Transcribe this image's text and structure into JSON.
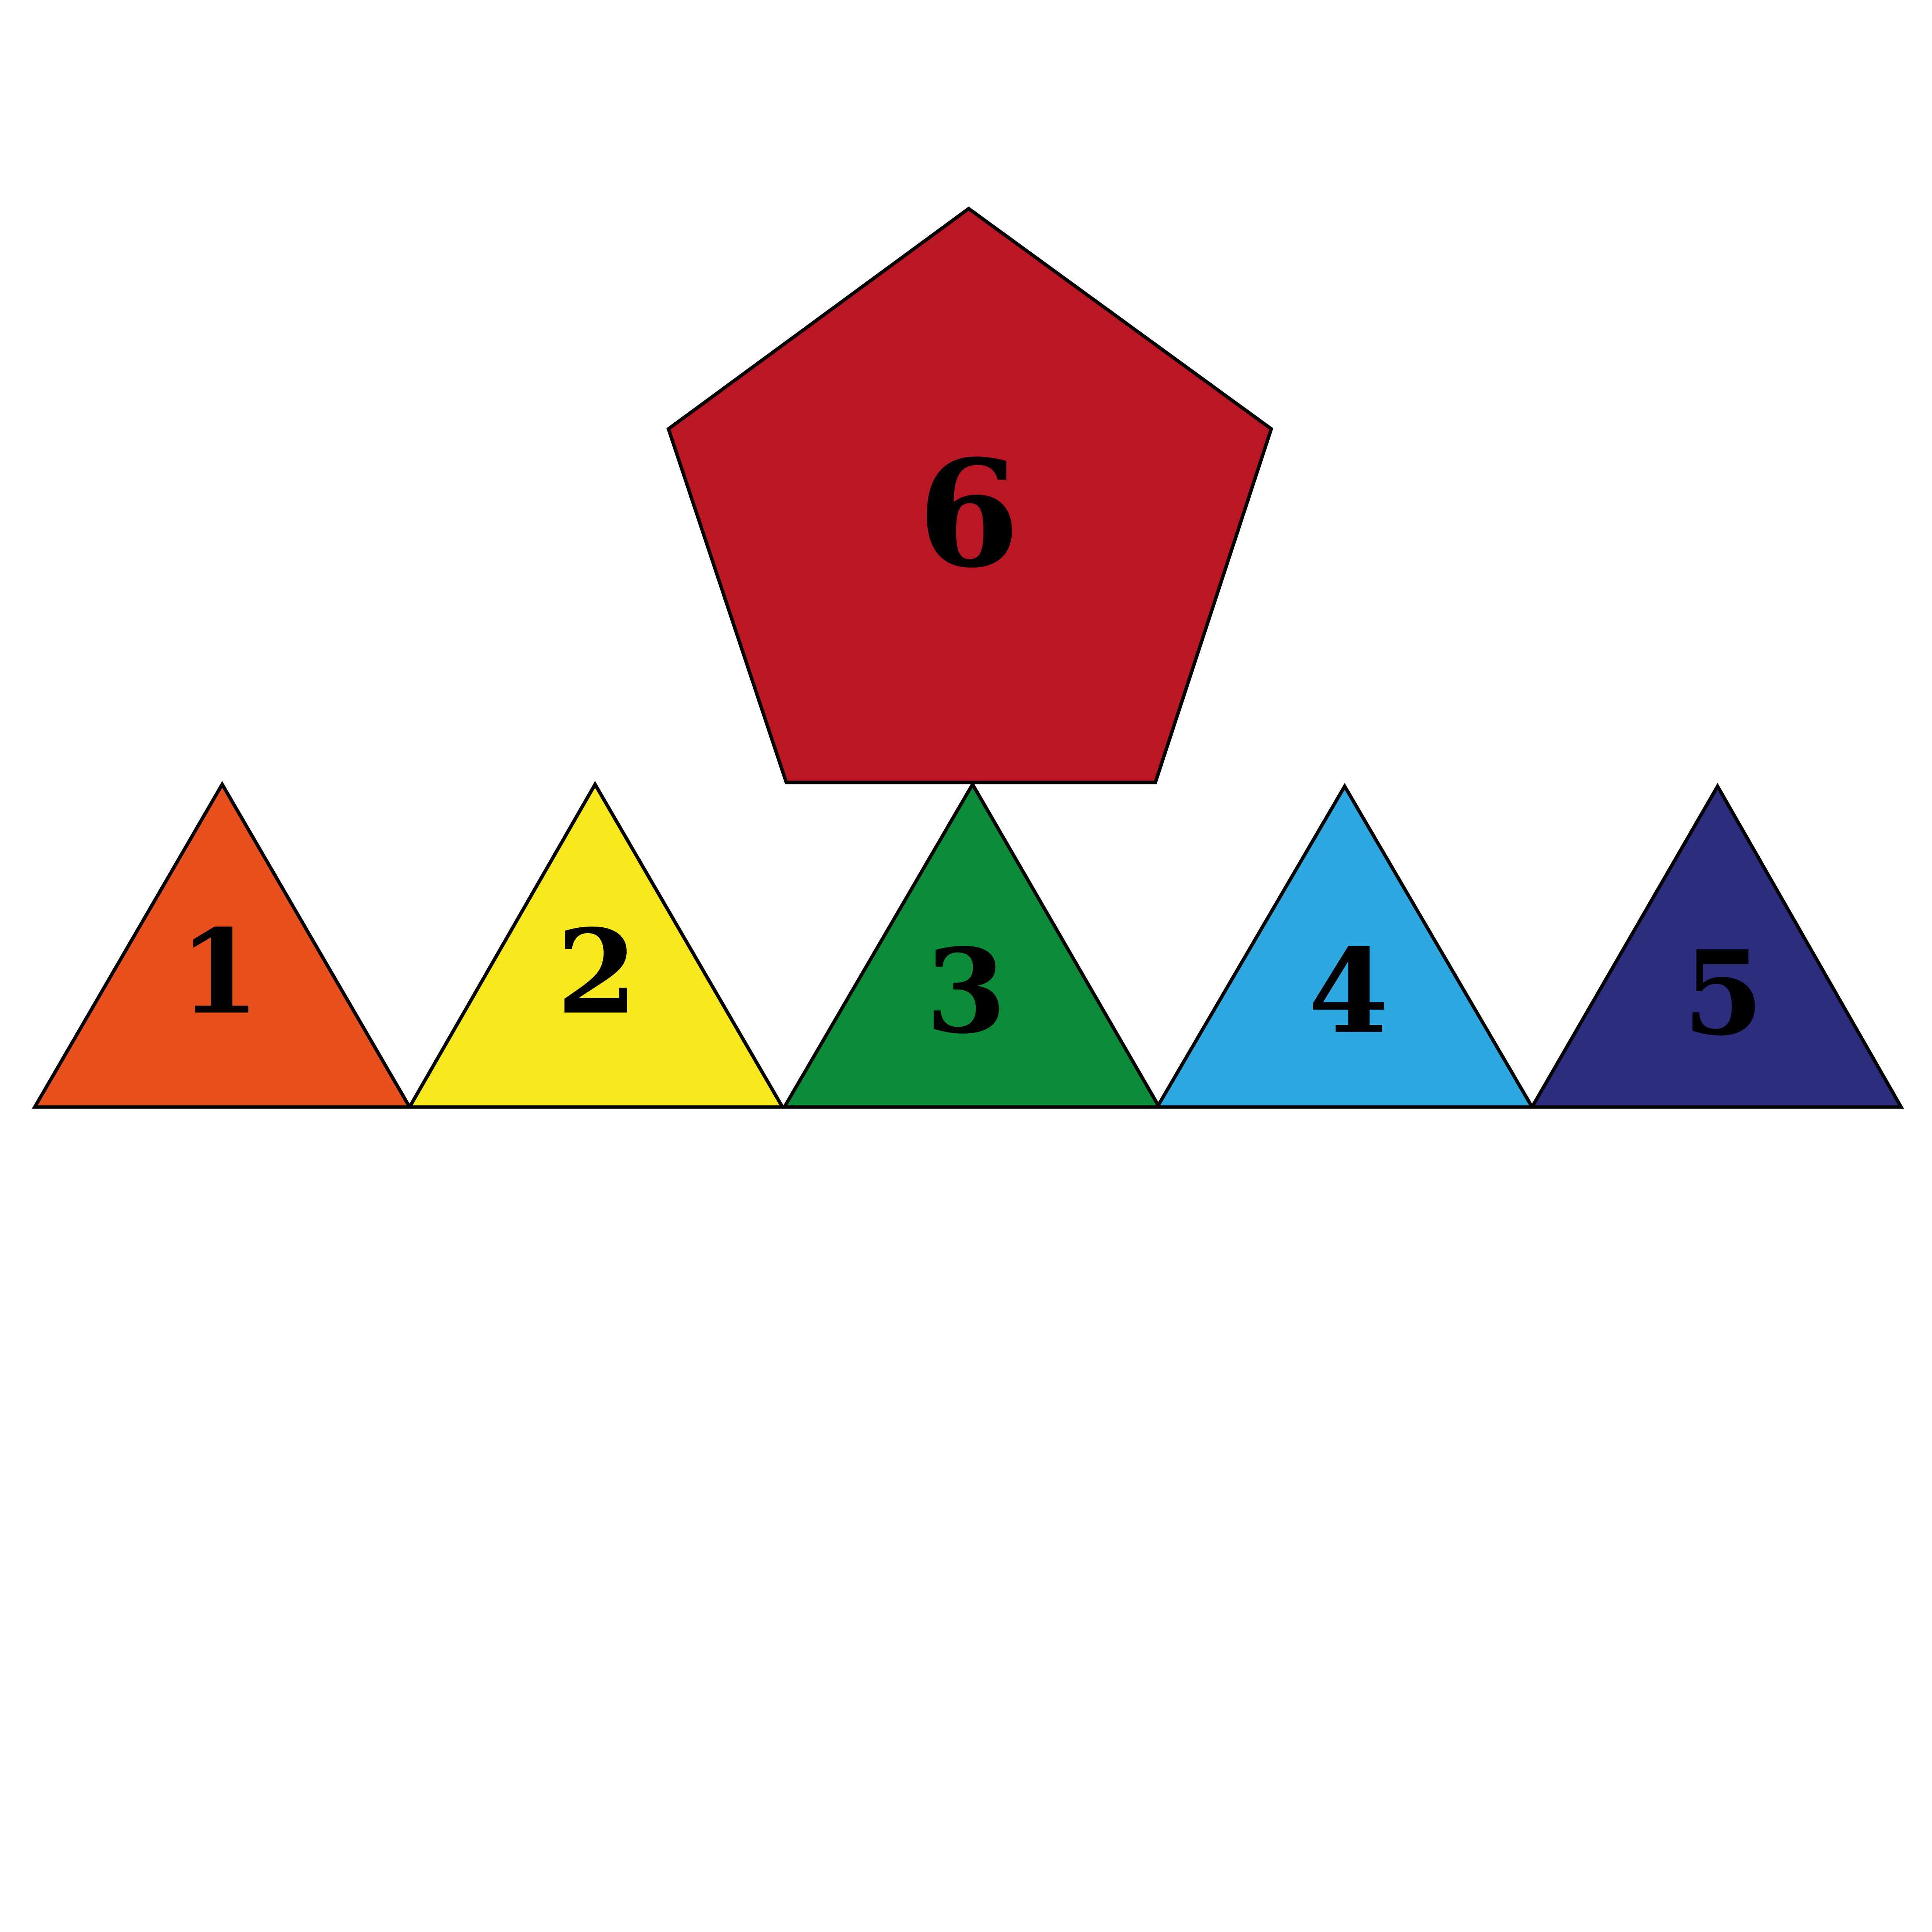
{
  "pentagon": {
    "label": "6",
    "color": "#BA1623",
    "shape": "pentagon"
  },
  "triangles": [
    {
      "label": "1",
      "color": "#E8511E",
      "shape": "triangle"
    },
    {
      "label": "2",
      "color": "#F7E81E",
      "shape": "triangle"
    },
    {
      "label": "3",
      "color": "#0C8C38",
      "shape": "triangle"
    },
    {
      "label": "4",
      "color": "#2EA8E1",
      "shape": "triangle"
    },
    {
      "label": "5",
      "color": "#2D2D80",
      "shape": "triangle"
    }
  ]
}
